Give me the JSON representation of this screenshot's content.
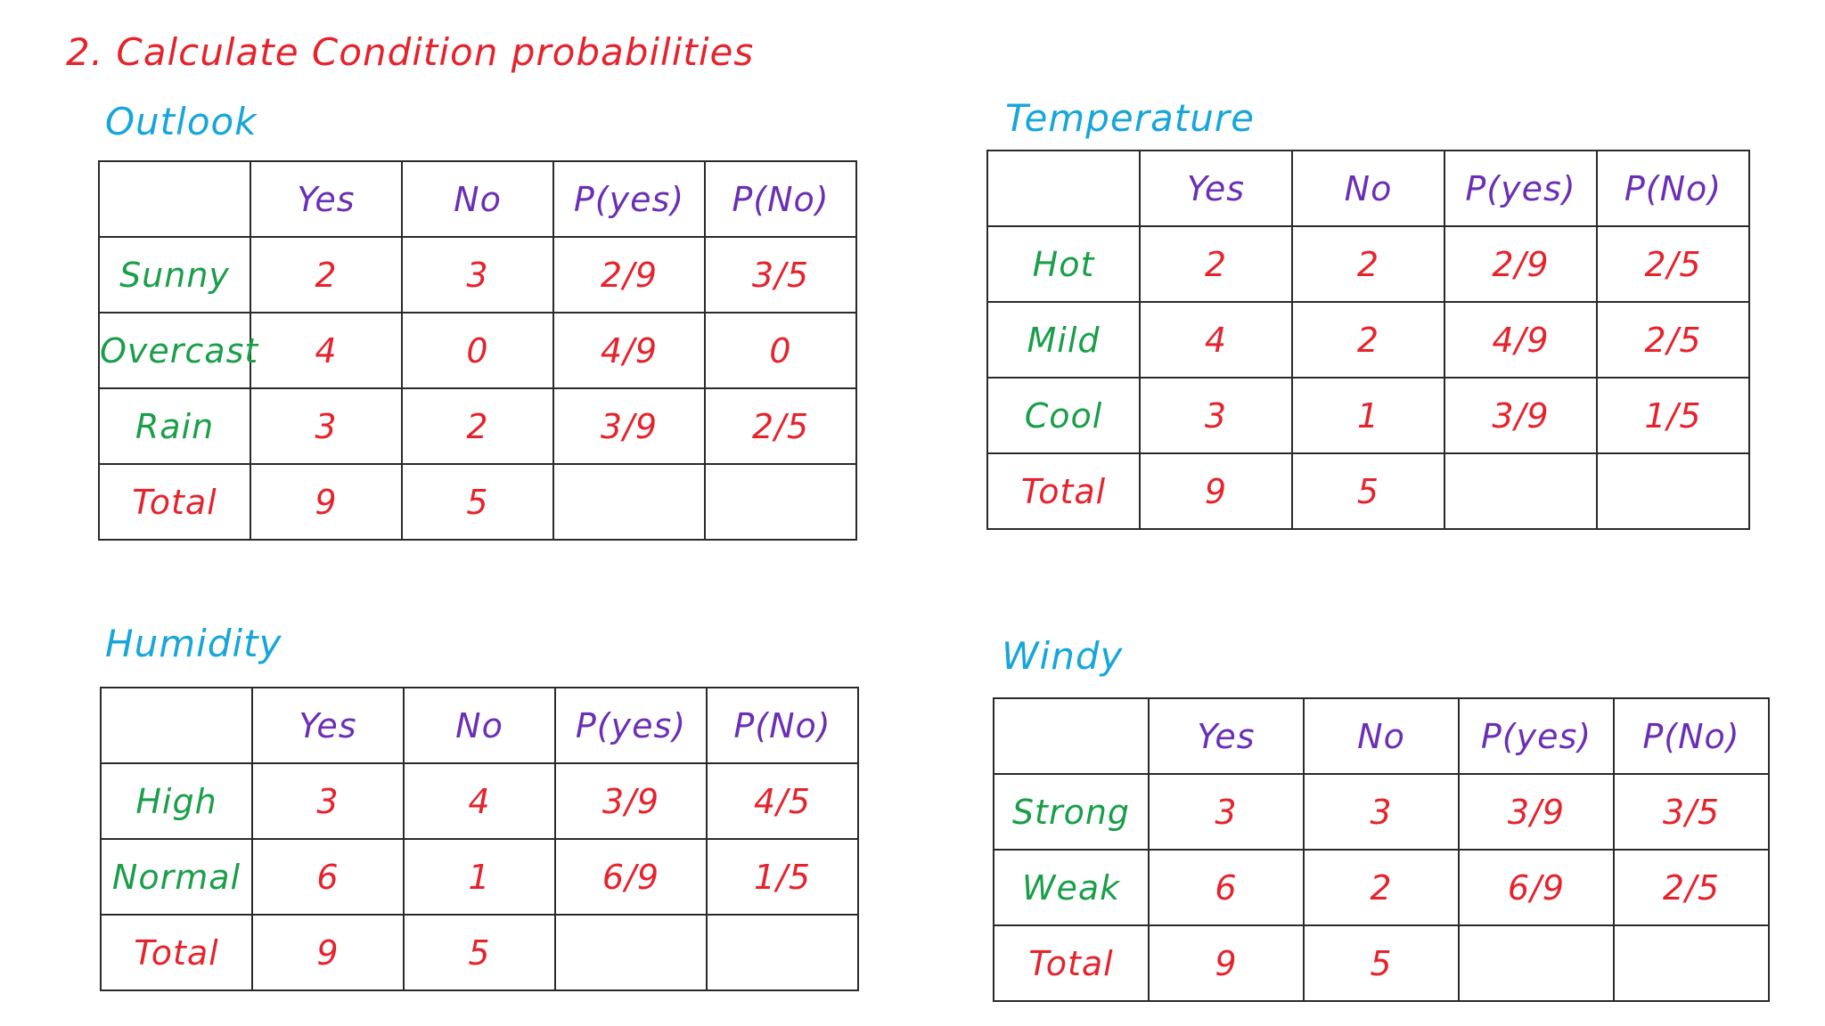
{
  "title": "2. Calculate Condition probabilities",
  "colors": {
    "title": "#e5232d",
    "heading": "#17a6da",
    "column_header": "#6a2fb5",
    "row_label": "#1a9e49",
    "total_label": "#e5232d",
    "values": "#e5232d",
    "grid": "#2a2a2a"
  },
  "tables": {
    "outlook": {
      "heading": "Outlook",
      "columns": [
        "",
        "Yes",
        "No",
        "P(yes)",
        "P(No)"
      ],
      "rows": [
        {
          "label": "Sunny",
          "yes": "2",
          "no": "3",
          "p_yes": "2/9",
          "p_no": "3/5"
        },
        {
          "label": "Overcast",
          "yes": "4",
          "no": "0",
          "p_yes": "4/9",
          "p_no": "0"
        },
        {
          "label": "Rain",
          "yes": "3",
          "no": "2",
          "p_yes": "3/9",
          "p_no": "2/5"
        },
        {
          "label": "Total",
          "yes": "9",
          "no": "5",
          "p_yes": "",
          "p_no": ""
        }
      ]
    },
    "temperature": {
      "heading": "Temperature",
      "columns": [
        "",
        "Yes",
        "No",
        "P(yes)",
        "P(No)"
      ],
      "rows": [
        {
          "label": "Hot",
          "yes": "2",
          "no": "2",
          "p_yes": "2/9",
          "p_no": "2/5"
        },
        {
          "label": "Mild",
          "yes": "4",
          "no": "2",
          "p_yes": "4/9",
          "p_no": "2/5"
        },
        {
          "label": "Cool",
          "yes": "3",
          "no": "1",
          "p_yes": "3/9",
          "p_no": "1/5"
        },
        {
          "label": "Total",
          "yes": "9",
          "no": "5",
          "p_yes": "",
          "p_no": ""
        }
      ]
    },
    "humidity": {
      "heading": "Humidity",
      "columns": [
        "",
        "Yes",
        "No",
        "P(yes)",
        "P(No)"
      ],
      "rows": [
        {
          "label": "High",
          "yes": "3",
          "no": "4",
          "p_yes": "3/9",
          "p_no": "4/5"
        },
        {
          "label": "Normal",
          "yes": "6",
          "no": "1",
          "p_yes": "6/9",
          "p_no": "1/5"
        },
        {
          "label": "Total",
          "yes": "9",
          "no": "5",
          "p_yes": "",
          "p_no": ""
        }
      ]
    },
    "windy": {
      "heading": "Windy",
      "columns": [
        "",
        "Yes",
        "No",
        "P(yes)",
        "P(No)"
      ],
      "rows": [
        {
          "label": "Strong",
          "yes": "3",
          "no": "3",
          "p_yes": "3/9",
          "p_no": "3/5"
        },
        {
          "label": "Weak",
          "yes": "6",
          "no": "2",
          "p_yes": "6/9",
          "p_no": "2/5"
        },
        {
          "label": "Total",
          "yes": "9",
          "no": "5",
          "p_yes": "",
          "p_no": ""
        }
      ]
    }
  }
}
